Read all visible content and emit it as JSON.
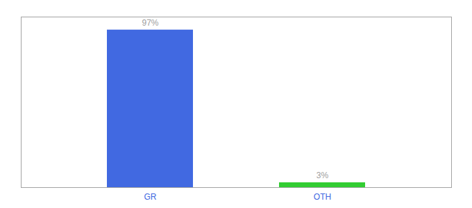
{
  "chart_data": {
    "type": "bar",
    "categories": [
      "GR",
      "OTH"
    ],
    "values": [
      97,
      3
    ],
    "value_labels": [
      "97%",
      "3%"
    ],
    "colors": [
      "#4169e1",
      "#32cd32"
    ],
    "ylim": [
      0,
      105
    ],
    "data_labels": true,
    "tick_labels": "x"
  }
}
